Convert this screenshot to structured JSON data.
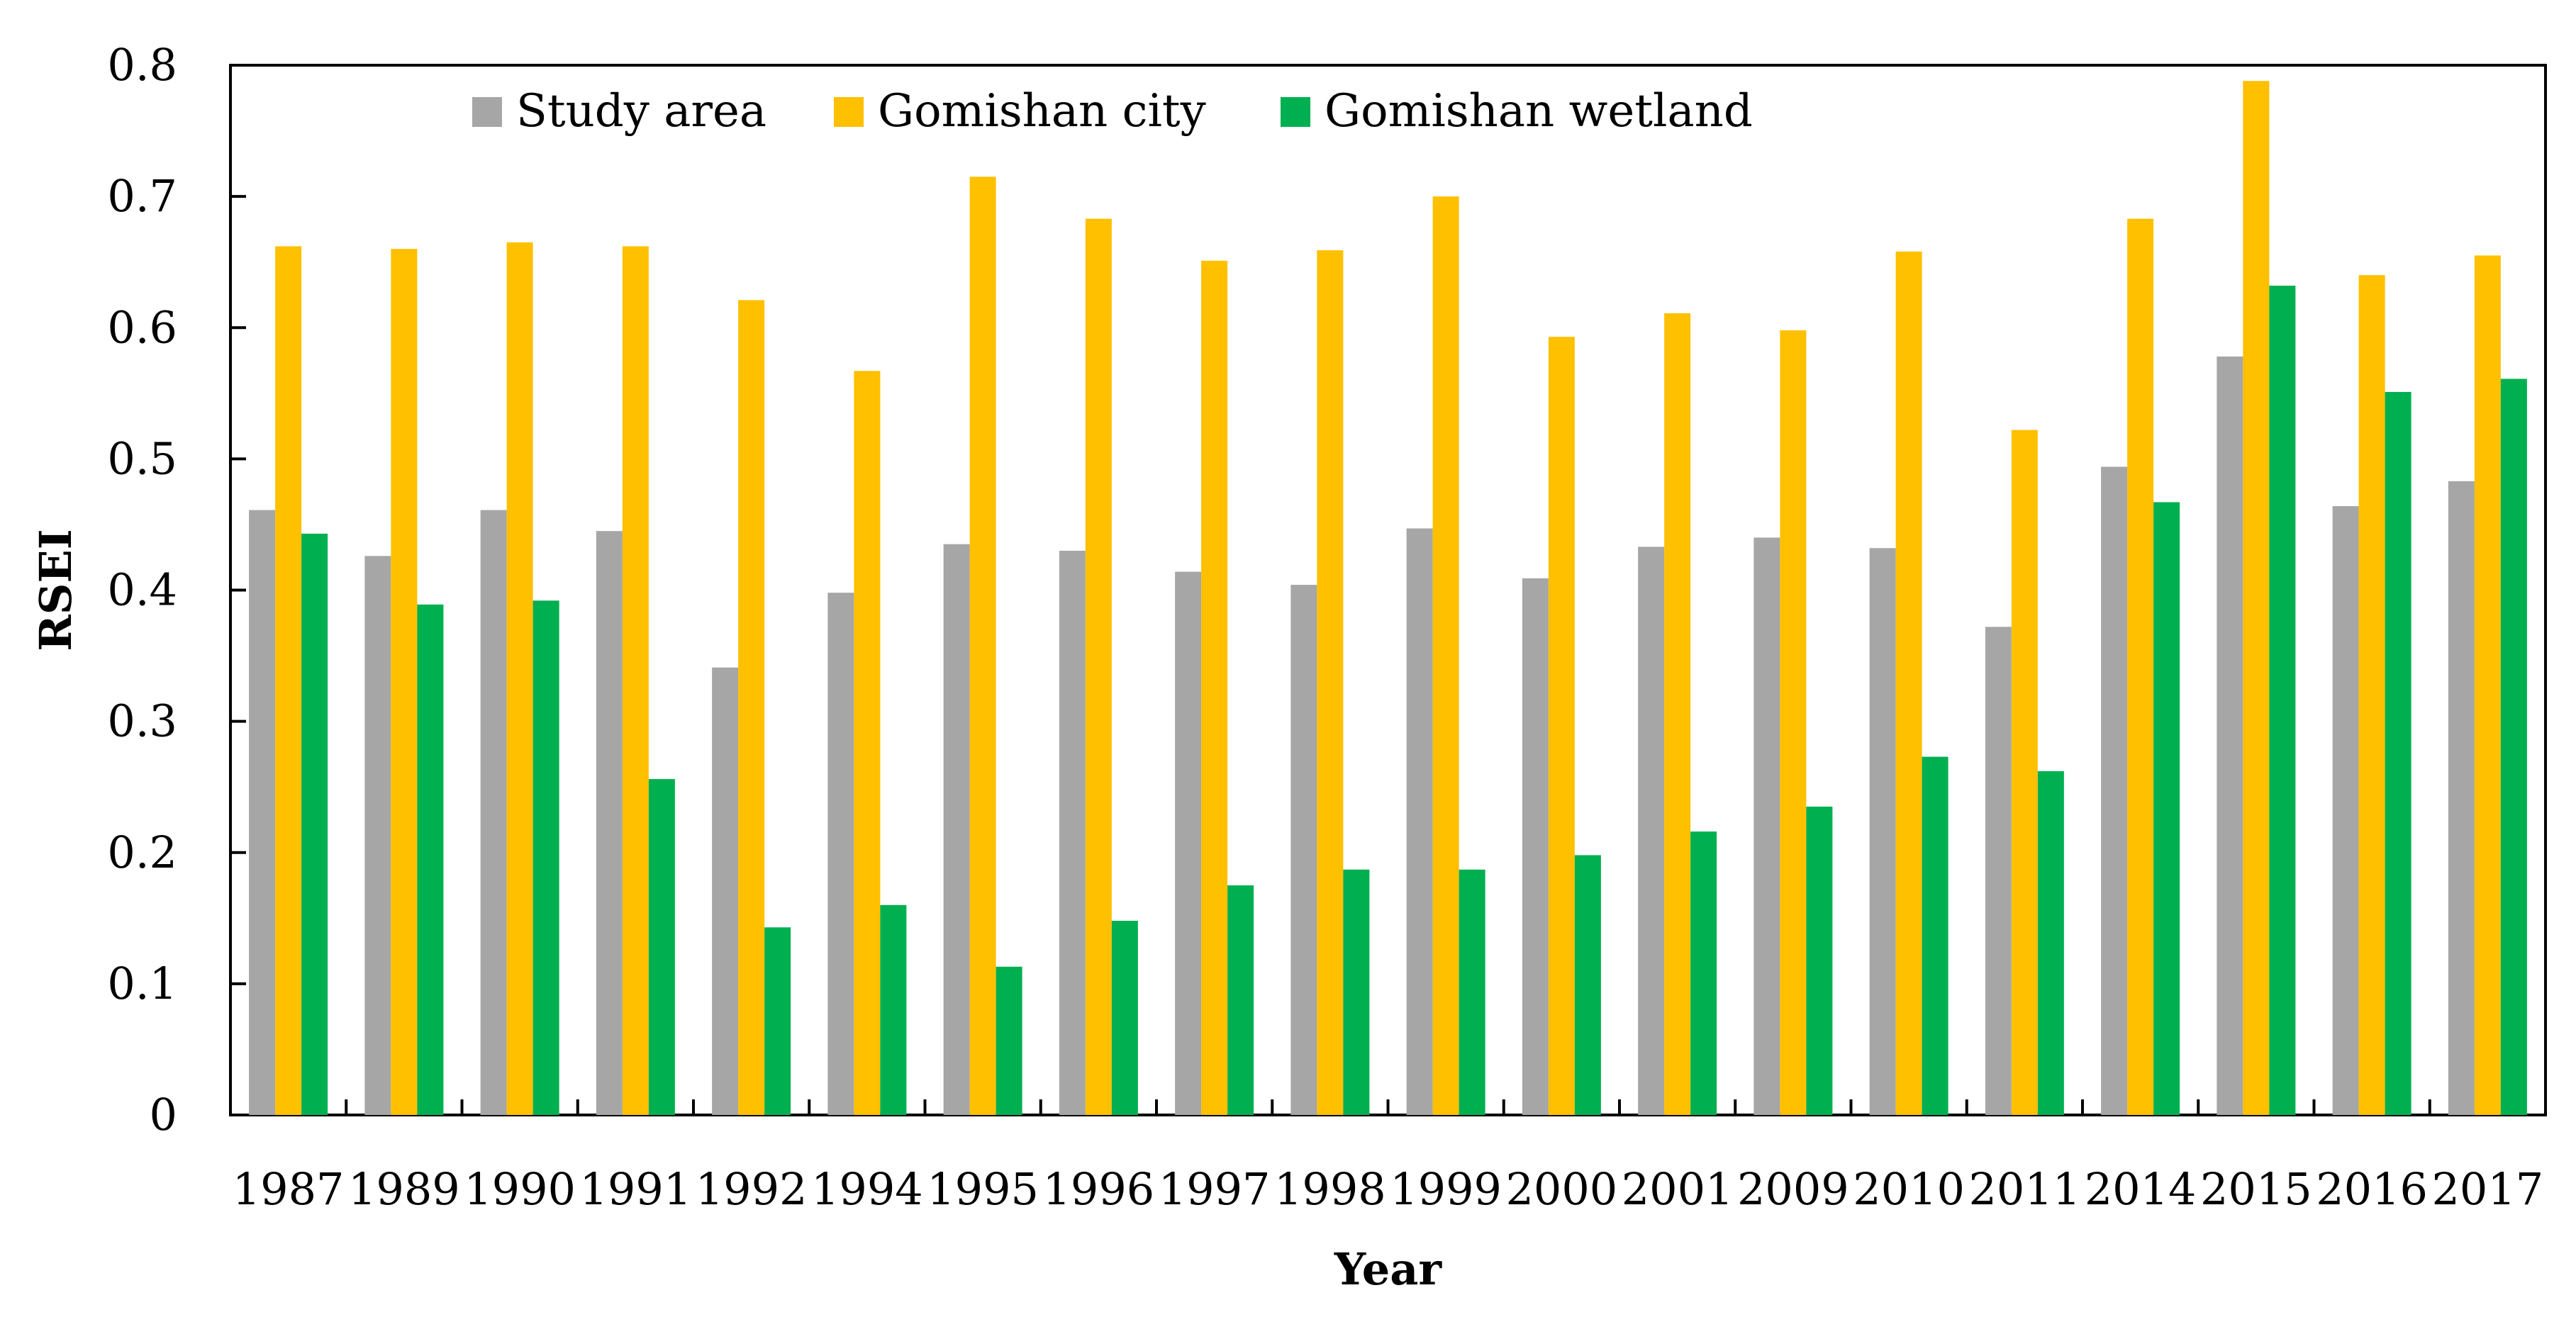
{
  "chart_data": {
    "type": "bar",
    "title": "",
    "xlabel": "Year",
    "ylabel": "RSEI",
    "ylim": [
      0,
      0.8
    ],
    "yticks": [
      "0",
      "0.1",
      "0.2",
      "0.3",
      "0.4",
      "0.5",
      "0.6",
      "0.7",
      "0.8"
    ],
    "ytick_values": [
      0,
      0.1,
      0.2,
      0.3,
      0.4,
      0.5,
      0.6,
      0.7,
      0.8
    ],
    "categories": [
      "1987",
      "1989",
      "1990",
      "1991",
      "1992",
      "1994",
      "1995",
      "1996",
      "1997",
      "1998",
      "1999",
      "2000",
      "2001",
      "2009",
      "2010",
      "2011",
      "2014",
      "2015",
      "2016",
      "2017"
    ],
    "legend_position": "top-left",
    "grid": false,
    "series": [
      {
        "name": "Study area",
        "color": "#a6a6a6",
        "values": [
          0.461,
          0.426,
          0.461,
          0.445,
          0.341,
          0.398,
          0.435,
          0.43,
          0.414,
          0.404,
          0.447,
          0.409,
          0.433,
          0.44,
          0.432,
          0.372,
          0.494,
          0.578,
          0.464,
          0.483
        ]
      },
      {
        "name": "Gomishan city",
        "color": "#ffc000",
        "values": [
          0.662,
          0.66,
          0.665,
          0.662,
          0.621,
          0.567,
          0.715,
          0.683,
          0.651,
          0.659,
          0.7,
          0.593,
          0.611,
          0.598,
          0.658,
          0.522,
          0.683,
          0.788,
          0.64,
          0.655
        ]
      },
      {
        "name": "Gomishan wetland",
        "color": "#00b050",
        "values": [
          0.443,
          0.389,
          0.392,
          0.256,
          0.143,
          0.16,
          0.113,
          0.148,
          0.175,
          0.187,
          0.187,
          0.198,
          0.216,
          0.235,
          0.273,
          0.262,
          0.467,
          0.632,
          0.551,
          0.561
        ]
      }
    ]
  }
}
